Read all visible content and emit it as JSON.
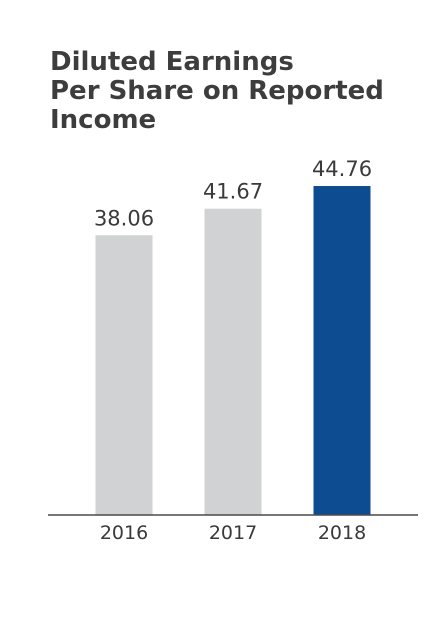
{
  "chart_data": {
    "type": "bar",
    "title_lines": [
      "Diluted Earnings",
      "Per Share on Reported",
      "Income"
    ],
    "categories": [
      "2016",
      "2017",
      "2018"
    ],
    "values": [
      38.06,
      41.67,
      44.76
    ],
    "value_labels": [
      "38.06",
      "41.67",
      "44.76"
    ],
    "xlabel": "",
    "ylabel": "",
    "ylim": [
      0,
      50
    ],
    "grid": false,
    "colors": [
      "#d1d2d3",
      "#d1d2d3",
      "#0e4c92"
    ],
    "axis_color": "#4a4a4a"
  }
}
